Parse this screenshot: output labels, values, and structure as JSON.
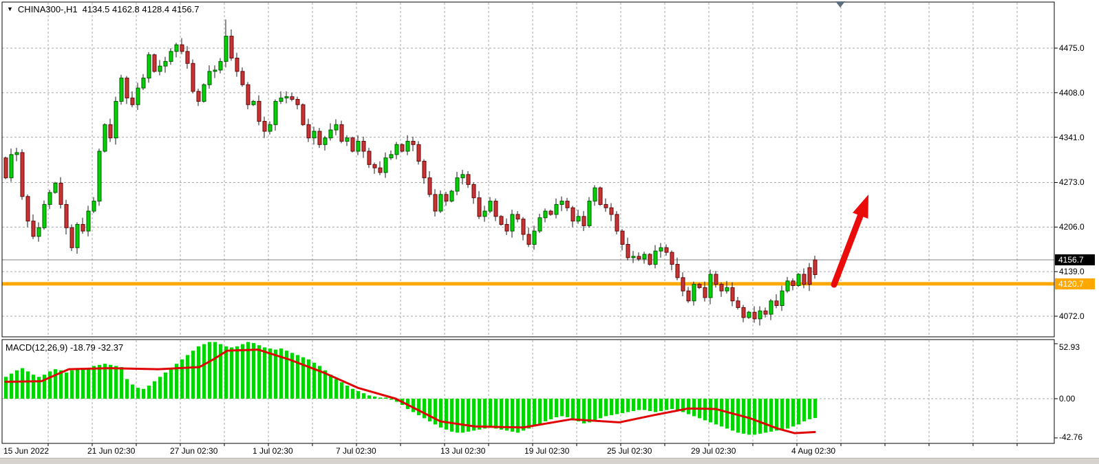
{
  "title": {
    "symbol_period": "CHINA300-,H1",
    "ohlc": "4134.5 4162.8 4128.4 4156.7"
  },
  "price_axis": {
    "labels": [
      {
        "text": "4475.0",
        "price": 4475.0
      },
      {
        "text": "4408.0",
        "price": 4408.0
      },
      {
        "text": "4341.0",
        "price": 4341.0
      },
      {
        "text": "4273.0",
        "price": 4273.0
      },
      {
        "text": "4206.0",
        "price": 4206.0
      },
      {
        "text": "4139.0",
        "price": 4139.0
      },
      {
        "text": "4072.0",
        "price": 4072.0
      }
    ],
    "current_price_badge": {
      "text": "4156.7",
      "price": 4156.7,
      "bg": "#000000",
      "fg": "#ffffff"
    },
    "line_badge": {
      "text": "4120.7",
      "price": 4120.7,
      "bg": "#ffa800",
      "fg": "#ffffff"
    }
  },
  "time_axis": {
    "labels": [
      {
        "text": "15 Jun 2022",
        "x": 5
      },
      {
        "text": "21 Jun 02:30",
        "x": 127
      },
      {
        "text": "27 Jun 02:30",
        "x": 247
      },
      {
        "text": "1 Jul 02:30",
        "x": 367
      },
      {
        "text": "7 Jul 02:30",
        "x": 488
      },
      {
        "text": "13 Jul 02:30",
        "x": 640
      },
      {
        "text": "19 Jul 02:30",
        "x": 762
      },
      {
        "text": "25 Jul 02:30",
        "x": 882
      },
      {
        "text": "29 Jul 02:30",
        "x": 1004
      },
      {
        "text": "4 Aug 02:30",
        "x": 1150
      }
    ]
  },
  "macd_panel": {
    "label": "MACD(12,26,9) -18.79 -32.37",
    "axis_labels": [
      {
        "text": "52.93",
        "value": 52.93
      },
      {
        "text": "0.00",
        "value": 0
      },
      {
        "text": "-42.76",
        "value": -42.76
      }
    ]
  },
  "annotations": {
    "trend_arrow": {
      "color": "#ea0b0b",
      "tail": [
        1212,
        414
      ],
      "tip": [
        1262,
        283
      ]
    },
    "horizontal_line": {
      "price": 4120.7,
      "color": "#ffa800",
      "thickness": 5
    },
    "current_price_line": {
      "price": 4156.7,
      "color": "#808080"
    }
  },
  "colors": {
    "grid": "#a8a8a8",
    "panel_border": "#000000",
    "bull_body": "#00d400",
    "bull_border": "#005500",
    "bear_body": "#cb3333",
    "bear_border": "#5e0b0b",
    "wick": "#1a1a1a",
    "macd_histogram": "#00d400",
    "macd_signal": "#e00000",
    "shift_marker": "#5c6e80"
  },
  "chart_data": [
    {
      "type": "candlestick",
      "title": "CHINA300-,H1",
      "timeframe": "H1",
      "x_range": [
        "15 Jun 2022",
        "4 Aug 2022 02:30"
      ],
      "ylim": [
        4040,
        4530
      ],
      "first_open": 4310,
      "closes": [
        4280,
        4315,
        4318,
        4252,
        4215,
        4192,
        4205,
        4240,
        4258,
        4272,
        4240,
        4205,
        4175,
        4210,
        4200,
        4230,
        4245,
        4320,
        4360,
        4340,
        4395,
        4430,
        4400,
        4390,
        4415,
        4430,
        4465,
        4440,
        4448,
        4455,
        4470,
        4480,
        4470,
        4452,
        4410,
        4395,
        4420,
        4440,
        4442,
        4455,
        4493,
        4460,
        4440,
        4420,
        4390,
        4395,
        4365,
        4350,
        4360,
        4395,
        4400,
        4402,
        4398,
        4390,
        4360,
        4340,
        4350,
        4330,
        4340,
        4352,
        4360,
        4335,
        4340,
        4320,
        4335,
        4320,
        4300,
        4295,
        4288,
        4310,
        4315,
        4330,
        4320,
        4335,
        4330,
        4305,
        4280,
        4255,
        4230,
        4255,
        4245,
        4260,
        4280,
        4285,
        4270,
        4250,
        4222,
        4230,
        4245,
        4222,
        4210,
        4200,
        4225,
        4218,
        4195,
        4180,
        4200,
        4220,
        4230,
        4225,
        4240,
        4245,
        4235,
        4215,
        4222,
        4208,
        4245,
        4265,
        4240,
        4235,
        4225,
        4200,
        4180,
        4160,
        4162,
        4158,
        4165,
        4150,
        4170,
        4175,
        4168,
        4150,
        4130,
        4110,
        4095,
        4120,
        4115,
        4100,
        4135,
        4120,
        4110,
        4115,
        4095,
        4085,
        4070,
        4078,
        4068,
        4080,
        4075,
        4095,
        4088,
        4110,
        4125,
        4118,
        4135,
        4120,
        4145,
        4156.7
      ],
      "last_bar": {
        "open": 4134.5,
        "high": 4162.8,
        "low": 4128.4,
        "close": 4156.7
      },
      "high_spike": {
        "index": 40,
        "high": 4518
      },
      "bear_color_override_indices": [
        146,
        147
      ],
      "note": "opens equal previous close; highs and lows estimated from wick extents"
    },
    {
      "type": "bar",
      "title": "MACD(12,26,9)",
      "ylim": [
        -42.76,
        52.93
      ],
      "current_values": {
        "histogram": -18.79,
        "signal": -32.37
      },
      "values": [
        20,
        23,
        26,
        28,
        25,
        22,
        20,
        22,
        25,
        27,
        26,
        24,
        26,
        28,
        27,
        28,
        30,
        31,
        32,
        31,
        30,
        29,
        18,
        13,
        10,
        9,
        12,
        16,
        20,
        24,
        28,
        32,
        36,
        40,
        44,
        48,
        50,
        52,
        52,
        50,
        48,
        47,
        48,
        50,
        52,
        51,
        49,
        47,
        46,
        45,
        46,
        44,
        42,
        40,
        38,
        36,
        33,
        30,
        26,
        22,
        18,
        15,
        12,
        9,
        7,
        5,
        3,
        2,
        1,
        1,
        -1,
        -3,
        -6,
        -10,
        -13,
        -16,
        -19,
        -22,
        -25,
        -28,
        -30,
        -32,
        -33,
        -33,
        -32,
        -31,
        -30,
        -29,
        -28,
        -29,
        -30,
        -31,
        -32,
        -33,
        -31,
        -29,
        -27,
        -25,
        -22,
        -20,
        -18,
        -17,
        -18,
        -20,
        -22,
        -24,
        -23,
        -21,
        -19,
        -17,
        -16,
        -15,
        -14,
        -13,
        -12,
        -11,
        -11,
        -12,
        -13,
        -12,
        -11,
        -10,
        -11,
        -13,
        -15,
        -17,
        -19,
        -21,
        -23,
        -25,
        -27,
        -29,
        -31,
        -33,
        -34,
        -35,
        -35,
        -34,
        -33,
        -32,
        -31,
        -30,
        -29,
        -27,
        -25,
        -22,
        -20,
        -18.79
      ],
      "signal_points": [
        [
          8,
          15.5
        ],
        [
          60,
          16
        ],
        [
          100,
          27
        ],
        [
          160,
          28
        ],
        [
          230,
          27
        ],
        [
          290,
          29
        ],
        [
          310,
          36
        ],
        [
          330,
          44
        ],
        [
          375,
          45
        ],
        [
          420,
          36
        ],
        [
          470,
          24
        ],
        [
          520,
          10
        ],
        [
          575,
          0
        ],
        [
          640,
          -22
        ],
        [
          690,
          -27
        ],
        [
          760,
          -28
        ],
        [
          830,
          -20
        ],
        [
          900,
          -23
        ],
        [
          950,
          -16
        ],
        [
          1000,
          -9.5
        ],
        [
          1040,
          -10
        ],
        [
          1090,
          -19
        ],
        [
          1130,
          -29
        ],
        [
          1155,
          -33.5
        ],
        [
          1184,
          -32.4
        ]
      ]
    }
  ]
}
